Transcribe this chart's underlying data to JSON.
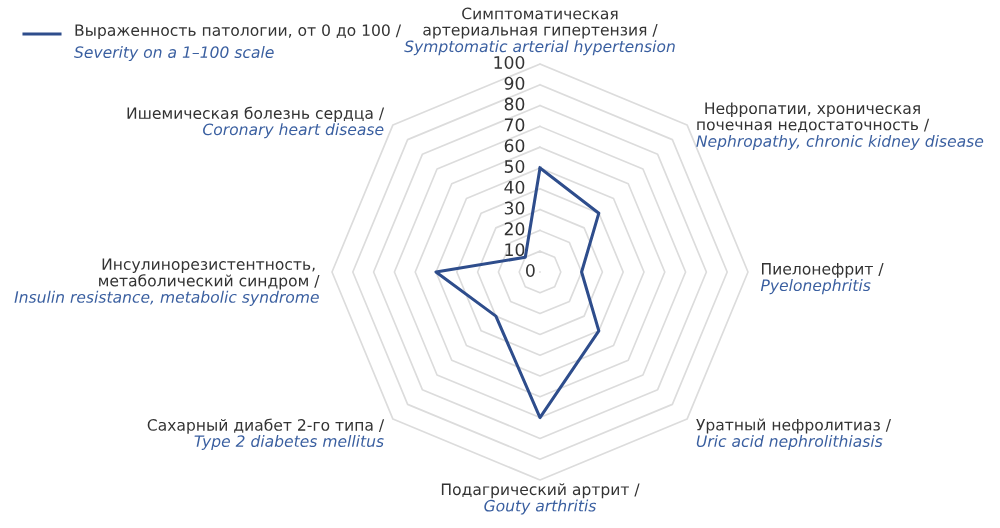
{
  "chart_data": {
    "type": "radar",
    "categories": [
      "Симптоматическая артериальная гипертензия /\nSymptomatic arterial hypertension",
      "Нефропатии, хроническая\nпочечная недостаточность /\nNephropathy, chronic kidney disease",
      "Пиелонефрит /\nPyelonephritis",
      "Уратный нефролитиаз /\nUric acid nephrolithiasis",
      "Подагрический артрит /\nGouty arthritis",
      "Сахарный диабет 2-го типа /\nType 2 diabetes mellitus",
      "Инсулинорезистентность,\nметаболический синдром /\nInsulin resistance, metabolic syndrome",
      "Ишемическая болезнь сердца /\nCoronary heart disease"
    ],
    "series": [
      {
        "name": "Выраженность патологии, от 0 до 100 /\nSeverity on a 1–100 scale",
        "color": "#2e4d8c",
        "values": [
          50,
          40,
          20,
          40,
          70,
          30,
          50,
          10
        ]
      }
    ],
    "ylim": [
      0,
      100
    ],
    "yticks": [
      0,
      10,
      20,
      30,
      40,
      50,
      60,
      70,
      80,
      90,
      100
    ],
    "grid": true,
    "legend": "top left",
    "marker": "none",
    "line_style": "solid"
  }
}
